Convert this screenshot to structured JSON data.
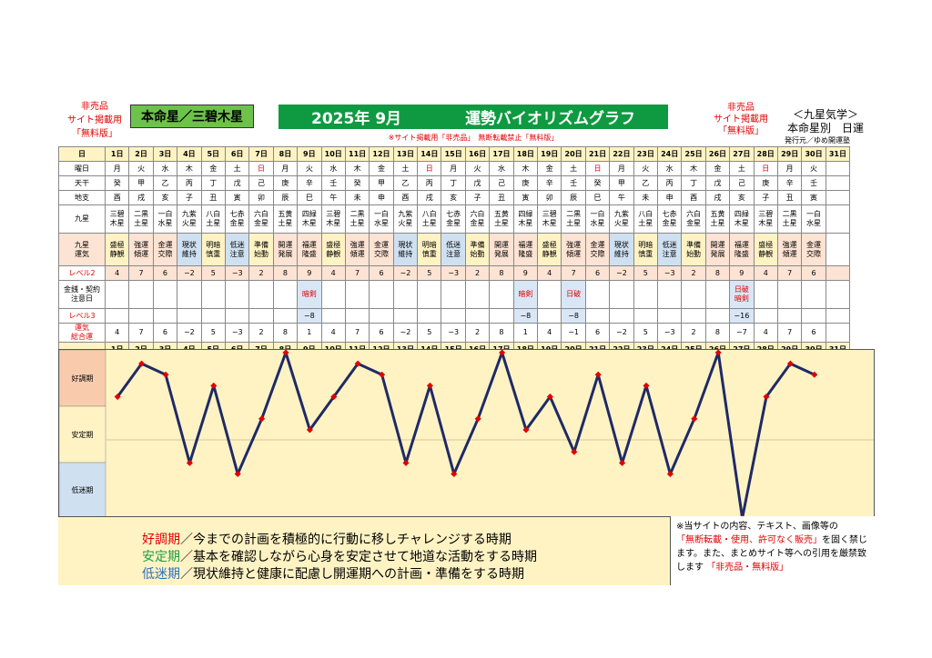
{
  "header": {
    "not_for_sale_lines": [
      "非売品",
      "サイト掲載用",
      "「無料版」"
    ],
    "honmei_star": "本命星／三碧木星",
    "title_year_month": "2025年 9月",
    "title_main": "運勢バイオリズムグラフ",
    "right_not_for_sale": [
      "非売品",
      "サイト掲載用",
      "「無料版」"
    ],
    "right_title": "＜九星気学＞",
    "right_subtitle": "本命星別　日運",
    "publisher": "発行元／ゆめ開運塾",
    "notice": "※サイト掲載用「非売品」　無断転載禁止「無料版」"
  },
  "table": {
    "labels": {
      "day": "日",
      "weekday": "曜日",
      "tenkan": "天干",
      "chishi": "地支",
      "kyusei": "九星",
      "unsei": "九星運気",
      "level2": "レベル2",
      "kinsen": "金銭・契約注意日",
      "level3": "レベル3",
      "total": "運気総合運"
    },
    "days": [
      "1日",
      "2日",
      "3日",
      "4日",
      "5日",
      "6日",
      "7日",
      "8日",
      "9日",
      "10日",
      "11日",
      "12日",
      "13日",
      "14日",
      "15日",
      "16日",
      "17日",
      "18日",
      "19日",
      "20日",
      "21日",
      "22日",
      "23日",
      "24日",
      "25日",
      "26日",
      "27日",
      "28日",
      "29日",
      "30日",
      "31日"
    ],
    "weekdays": [
      "月",
      "火",
      "水",
      "木",
      "金",
      "土",
      "日",
      "月",
      "火",
      "水",
      "木",
      "金",
      "土",
      "日",
      "月",
      "火",
      "水",
      "木",
      "金",
      "土",
      "日",
      "月",
      "火",
      "水",
      "木",
      "金",
      "土",
      "日",
      "月",
      "火",
      ""
    ],
    "sunday_flags": [
      0,
      0,
      0,
      0,
      0,
      0,
      1,
      0,
      0,
      0,
      0,
      0,
      0,
      1,
      0,
      0,
      0,
      0,
      0,
      0,
      1,
      0,
      0,
      0,
      0,
      0,
      0,
      1,
      0,
      0,
      0
    ],
    "tenkan": [
      "癸",
      "甲",
      "乙",
      "丙",
      "丁",
      "戊",
      "己",
      "庚",
      "辛",
      "壬",
      "癸",
      "甲",
      "乙",
      "丙",
      "丁",
      "戊",
      "己",
      "庚",
      "辛",
      "壬",
      "癸",
      "甲",
      "乙",
      "丙",
      "丁",
      "戊",
      "己",
      "庚",
      "辛",
      "壬",
      ""
    ],
    "chishi": [
      "酉",
      "戌",
      "亥",
      "子",
      "丑",
      "寅",
      "卯",
      "辰",
      "巳",
      "午",
      "未",
      "申",
      "酉",
      "戌",
      "亥",
      "子",
      "丑",
      "寅",
      "卯",
      "辰",
      "巳",
      "午",
      "未",
      "申",
      "酉",
      "戌",
      "亥",
      "子",
      "丑",
      "寅",
      ""
    ],
    "kyusei": [
      [
        "三碧",
        "木星"
      ],
      [
        "二黒",
        "土星"
      ],
      [
        "一白",
        "水星"
      ],
      [
        "九紫",
        "火星"
      ],
      [
        "八白",
        "土星"
      ],
      [
        "七赤",
        "金星"
      ],
      [
        "六白",
        "金星"
      ],
      [
        "五黄",
        "土星"
      ],
      [
        "四緑",
        "木星"
      ],
      [
        "三碧",
        "木星"
      ],
      [
        "二黒",
        "土星"
      ],
      [
        "一白",
        "水星"
      ],
      [
        "九紫",
        "火星"
      ],
      [
        "八白",
        "土星"
      ],
      [
        "七赤",
        "金星"
      ],
      [
        "六白",
        "金星"
      ],
      [
        "五黄",
        "土星"
      ],
      [
        "四緑",
        "木星"
      ],
      [
        "三碧",
        "木星"
      ],
      [
        "二黒",
        "土星"
      ],
      [
        "一白",
        "水星"
      ],
      [
        "九紫",
        "火星"
      ],
      [
        "八白",
        "土星"
      ],
      [
        "七赤",
        "金星"
      ],
      [
        "六白",
        "金星"
      ],
      [
        "五黄",
        "土星"
      ],
      [
        "四緑",
        "木星"
      ],
      [
        "三碧",
        "木星"
      ],
      [
        "二黒",
        "土星"
      ],
      [
        "一白",
        "水星"
      ],
      [
        "",
        ""
      ]
    ],
    "unsei": [
      [
        "盛極",
        "静観"
      ],
      [
        "強運",
        "傾運"
      ],
      [
        "金運",
        "交際"
      ],
      [
        "現状",
        "維持"
      ],
      [
        "明暗",
        "慎重"
      ],
      [
        "低迷",
        "注意"
      ],
      [
        "準備",
        "始動"
      ],
      [
        "開運",
        "発展"
      ],
      [
        "福運",
        "隆盛"
      ],
      [
        "盛極",
        "静観"
      ],
      [
        "強運",
        "傾運"
      ],
      [
        "金運",
        "交際"
      ],
      [
        "現状",
        "維持"
      ],
      [
        "明暗",
        "慎重"
      ],
      [
        "低迷",
        "注意"
      ],
      [
        "準備",
        "始動"
      ],
      [
        "開運",
        "発展"
      ],
      [
        "福運",
        "隆盛"
      ],
      [
        "盛極",
        "静観"
      ],
      [
        "強運",
        "傾運"
      ],
      [
        "金運",
        "交際"
      ],
      [
        "現状",
        "維持"
      ],
      [
        "明暗",
        "慎重"
      ],
      [
        "低迷",
        "注意"
      ],
      [
        "準備",
        "始動"
      ],
      [
        "開運",
        "発展"
      ],
      [
        "福運",
        "隆盛"
      ],
      [
        "盛極",
        "静観"
      ],
      [
        "強運",
        "傾運"
      ],
      [
        "金運",
        "交際"
      ],
      [
        "",
        ""
      ]
    ],
    "level2": [
      "4",
      "7",
      "6",
      "−2",
      "5",
      "−3",
      "2",
      "8",
      "9",
      "4",
      "7",
      "6",
      "−2",
      "5",
      "−3",
      "2",
      "8",
      "9",
      "4",
      "7",
      "6",
      "−2",
      "5",
      "−3",
      "2",
      "8",
      "9",
      "4",
      "7",
      "6",
      ""
    ],
    "kinsen": [
      "",
      "",
      "",
      "",
      "",
      "",
      "",
      "",
      "暗剣",
      "",
      "",
      "",
      "",
      "",
      "",
      "",
      "",
      "暗剣",
      "",
      "日破",
      "",
      "",
      "",
      "",
      "",
      "",
      "日破\n暗剣",
      "",
      "",
      "",
      ""
    ],
    "level3": [
      "",
      "",
      "",
      "",
      "",
      "",
      "",
      "",
      "−8",
      "",
      "",
      "",
      "",
      "",
      "",
      "",
      "",
      "−8",
      "",
      "−8",
      "",
      "",
      "",
      "",
      "",
      "",
      "−16",
      "",
      "",
      "",
      ""
    ],
    "total": [
      "4",
      "7",
      "6",
      "−2",
      "5",
      "−3",
      "2",
      "8",
      "1",
      "4",
      "7",
      "6",
      "−2",
      "5",
      "−3",
      "2",
      "8",
      "1",
      "4",
      "−1",
      "6",
      "−2",
      "5",
      "−3",
      "2",
      "8",
      "−7",
      "4",
      "7",
      "6",
      ""
    ]
  },
  "colors": {
    "good": "#f9cbad",
    "stable": "#fff3c4",
    "low": "#cfe0f1",
    "line": "#1f2a66",
    "marker": "#e00000"
  },
  "chart_data": {
    "type": "line",
    "x": [
      "1日",
      "2日",
      "3日",
      "4日",
      "5日",
      "6日",
      "7日",
      "8日",
      "9日",
      "10日",
      "11日",
      "12日",
      "13日",
      "14日",
      "15日",
      "16日",
      "17日",
      "18日",
      "19日",
      "20日",
      "21日",
      "22日",
      "23日",
      "24日",
      "25日",
      "26日",
      "27日",
      "28日",
      "29日",
      "30日"
    ],
    "series": [
      {
        "values": [
          4,
          7,
          6,
          -2,
          5,
          -3,
          2,
          8,
          1,
          4,
          7,
          6,
          -2,
          5,
          -3,
          2,
          8,
          1,
          4,
          -1,
          6,
          -2,
          5,
          -3,
          2,
          8,
          -7,
          4,
          7,
          6
        ]
      }
    ],
    "bands": [
      {
        "label": "好調期"
      },
      {
        "label": "安定期"
      },
      {
        "label": "低迷期"
      }
    ],
    "ylim": [
      -7,
      8
    ]
  },
  "legend": {
    "good_term": "好調期",
    "good_text": "／今までの計画を積極的に行動に移しチャレンジする時期",
    "stable_term": "安定期",
    "stable_text": "／基本を確認しながら心身を安定させて地道な活動をする時期",
    "low_term": "低迷期",
    "low_text": "／現状維持と健康に配慮し開運期への計画・準備をする時期"
  },
  "copyright": {
    "line1": "※当サイトの内容、テキスト、画像等の",
    "red1": "「無断転載・使用、許可なく販売」",
    "line2": "を固く禁じます。また、まとめサイト等への引用を厳禁致します",
    "red2": "「非売品・無料版」"
  }
}
